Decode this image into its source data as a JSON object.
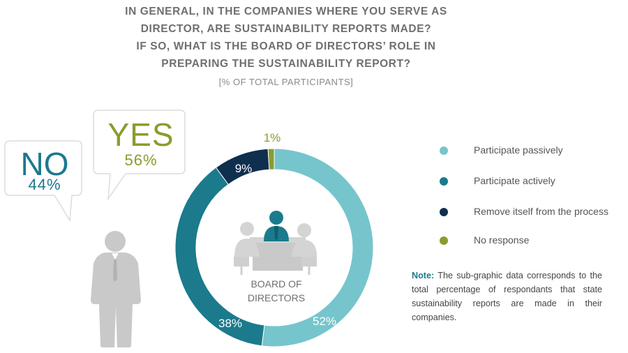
{
  "title_lines": [
    "IN GENERAL, IN THE COMPANIES WHERE YOU SERVE AS",
    "DIRECTOR, ARE SUSTAINABILITY REPORTS MADE?",
    "IF SO, WHAT IS THE BOARD OF DIRECTORS’ ROLE IN",
    "PREPARING THE SUSTAINABILITY REPORT?"
  ],
  "subtitle": "[% OF TOTAL PARTICIPANTS]",
  "colors": {
    "passive": "#76c5cc",
    "active": "#1b7a8c",
    "remove": "#0f2f4e",
    "no_response": "#8a9c2e",
    "person_gray": "#c9c9c9"
  },
  "chart_data": [
    {
      "type": "bar",
      "categories": [
        "YES",
        "NO"
      ],
      "values": [
        56,
        44
      ],
      "labels": [
        "56%",
        "44%"
      ]
    },
    {
      "type": "pie",
      "title": "BOARD OF DIRECTORS",
      "center_label_lines": [
        "BOARD OF",
        "DIRECTORS"
      ],
      "categories": [
        "Participate passively",
        "Participate actively",
        "Remove itself from the process",
        "No response"
      ],
      "values": [
        52,
        38,
        9,
        1
      ],
      "labels": [
        "52%",
        "38%",
        "9%",
        "1%"
      ],
      "colors": [
        "#76c5cc",
        "#1b7a8c",
        "#0f2f4e",
        "#8a9c2e"
      ],
      "legend_position": "right"
    }
  ],
  "note": {
    "label": "Note:",
    "text": "The sub-graphic data corresponds to the total percentage of respondants that state sustainability reports are made in their companies."
  },
  "icons": [
    "person-icon",
    "board-meeting-icon",
    "speech-bubble-icon"
  ]
}
